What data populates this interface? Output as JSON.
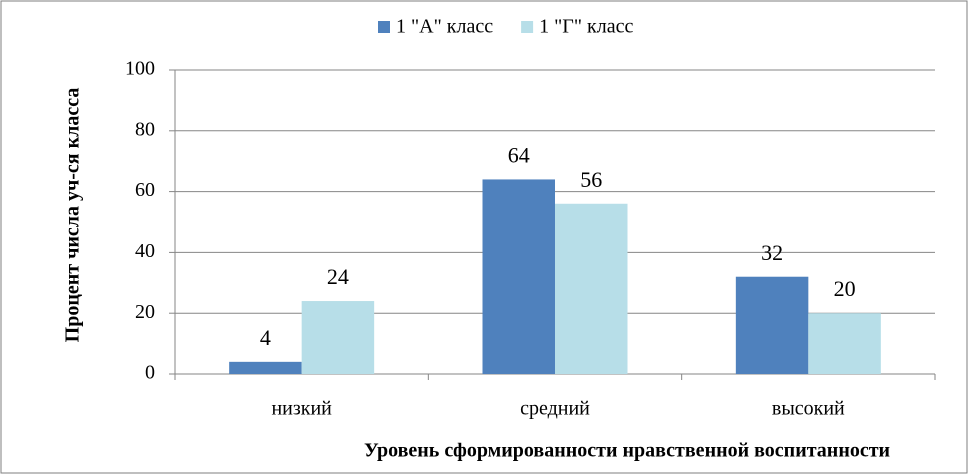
{
  "chart_data": {
    "type": "bar",
    "categories": [
      "низкий",
      "средний",
      "высокий"
    ],
    "series": [
      {
        "name": "1 \"А\" класс",
        "color": "#4f81bd",
        "values": [
          4,
          64,
          32
        ]
      },
      {
        "name": "1 \"Г\" класс",
        "color": "#b7dee8",
        "values": [
          24,
          56,
          20
        ]
      }
    ],
    "ylim": [
      0,
      100
    ],
    "yticks": [
      0,
      20,
      40,
      60,
      80,
      100
    ],
    "grid": true,
    "y_label": "Процент числа уч-ся класса",
    "x_label": "Уровень сформированности нравственной воспитанности",
    "legend": "top"
  }
}
